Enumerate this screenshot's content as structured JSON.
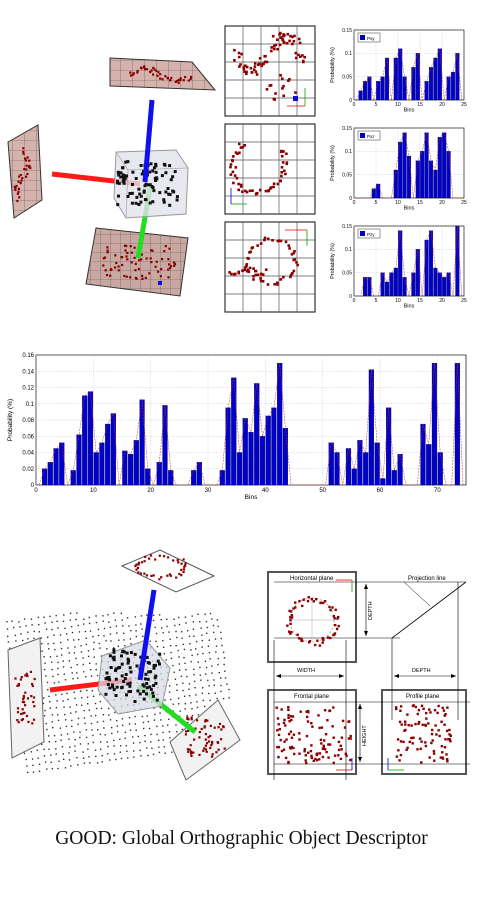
{
  "caption": "GOOD:  Global Orthographic Object Descriptor",
  "colors": {
    "bar": "#0000c8",
    "point": "#8b0000",
    "axis_x": "#ff0000",
    "axis_y": "#00dd00",
    "axis_z": "#0000dd"
  },
  "small_charts": [
    {
      "legend": "Pxy",
      "ylabel": "Probability (%)",
      "xlabel": "Bins",
      "xticks": [
        "0",
        "5",
        "10",
        "15",
        "20",
        "25"
      ],
      "yticks": [
        "0",
        "0.05",
        "0.1",
        "0.15"
      ],
      "xlim": [
        0,
        25
      ],
      "ylim": [
        0,
        0.15
      ],
      "values": [
        0,
        0.02,
        0.04,
        0.05,
        0,
        0.04,
        0.05,
        0.09,
        0,
        0.09,
        0.11,
        0.05,
        0,
        0.07,
        0.1,
        0,
        0.04,
        0.07,
        0.09,
        0.11,
        0,
        0.05,
        0.06,
        0.1,
        0
      ]
    },
    {
      "legend": "Pxz",
      "ylabel": "Probability (%)",
      "xlabel": "Bins",
      "xticks": [
        "0",
        "5",
        "10",
        "15",
        "20",
        "25"
      ],
      "yticks": [
        "0",
        "0.05",
        "0.1",
        "0.15"
      ],
      "xlim": [
        0,
        25
      ],
      "ylim": [
        0,
        0.15
      ],
      "values": [
        0,
        0,
        0,
        0,
        0.02,
        0.03,
        0,
        0,
        0,
        0.06,
        0.12,
        0.14,
        0.09,
        0,
        0.08,
        0.1,
        0.14,
        0.08,
        0.06,
        0.13,
        0.14,
        0.1,
        0,
        0,
        0
      ]
    },
    {
      "legend": "Pzy",
      "ylabel": "Probability (%)",
      "xlabel": "Bins",
      "xticks": [
        "0",
        "5",
        "10",
        "15",
        "20",
        "25"
      ],
      "yticks": [
        "0",
        "0.05",
        "0.1",
        "0.15"
      ],
      "xlim": [
        0,
        25
      ],
      "ylim": [
        0,
        0.15
      ],
      "values": [
        0,
        0,
        0.04,
        0.04,
        0,
        0,
        0.05,
        0.03,
        0.05,
        0.06,
        0.14,
        0.04,
        0,
        0.05,
        0.1,
        0,
        0.12,
        0.14,
        0.06,
        0.05,
        0.04,
        0.05,
        0,
        0.15,
        0
      ]
    }
  ],
  "chart_data": {
    "type": "bar",
    "ylabel": "Probability (%)",
    "xlabel": "Bins",
    "xlim": [
      0,
      75
    ],
    "ylim": [
      0,
      0.16
    ],
    "xticks": [
      "0",
      "10",
      "20",
      "30",
      "40",
      "50",
      "60",
      "70"
    ],
    "yticks": [
      "0",
      "0.02",
      "0.04",
      "0.06",
      "0.08",
      "0.1",
      "0.12",
      "0.14",
      "0.16"
    ],
    "values": [
      0,
      0.02,
      0.028,
      0.045,
      0.052,
      0,
      0.018,
      0.062,
      0.11,
      0.115,
      0.04,
      0.052,
      0.075,
      0.088,
      0,
      0.042,
      0.038,
      0.055,
      0.105,
      0.02,
      0,
      0.028,
      0.098,
      0.018,
      0,
      0,
      0,
      0.018,
      0.028,
      0,
      0,
      0,
      0.018,
      0.095,
      0.132,
      0.04,
      0.082,
      0.065,
      0.125,
      0.06,
      0.085,
      0.095,
      0.15,
      0.07,
      0,
      0,
      0,
      0,
      0,
      0,
      0,
      0.052,
      0.04,
      0,
      0.045,
      0.02,
      0.055,
      0.04,
      0.142,
      0.052,
      0.008,
      0.095,
      0.018,
      0.038,
      0,
      0,
      0,
      0.075,
      0.05,
      0.15,
      0.04,
      0,
      0,
      0.15,
      0
    ],
    "line_values": [
      0,
      0.02,
      0.028,
      0.045,
      0.052,
      0,
      0.018,
      0.062,
      0.11,
      0.115,
      0.04,
      0.052,
      0.075,
      0.088,
      0,
      0.042,
      0.038,
      0.055,
      0.105,
      0.02,
      0,
      0.028,
      0.098,
      0.018,
      0,
      0,
      0,
      0.018,
      0.028,
      0,
      0,
      0,
      0.018,
      0.095,
      0.132,
      0.04,
      0.082,
      0.065,
      0.125,
      0.06,
      0.085,
      0.095,
      0.15,
      0.07,
      0,
      0,
      0,
      0,
      0,
      0,
      0,
      0.052,
      0.04,
      0,
      0.045,
      0.02,
      0.055,
      0.04,
      0.142,
      0.052,
      0.008,
      0.095,
      0.018,
      0.038,
      0,
      0,
      0,
      0.075,
      0.05,
      0.15,
      0.04,
      0,
      0,
      0.15,
      0
    ]
  },
  "diagram": {
    "horizontal_plane": "Horizontal plane",
    "frontal_plane": "Frontal plane",
    "profile_plane": "Profile plane",
    "projection_line": "Projection line",
    "width": "WIDTH",
    "depth_right": "DEPTH",
    "depth_bottom": "DEPTH",
    "height": "HEIGHT"
  }
}
